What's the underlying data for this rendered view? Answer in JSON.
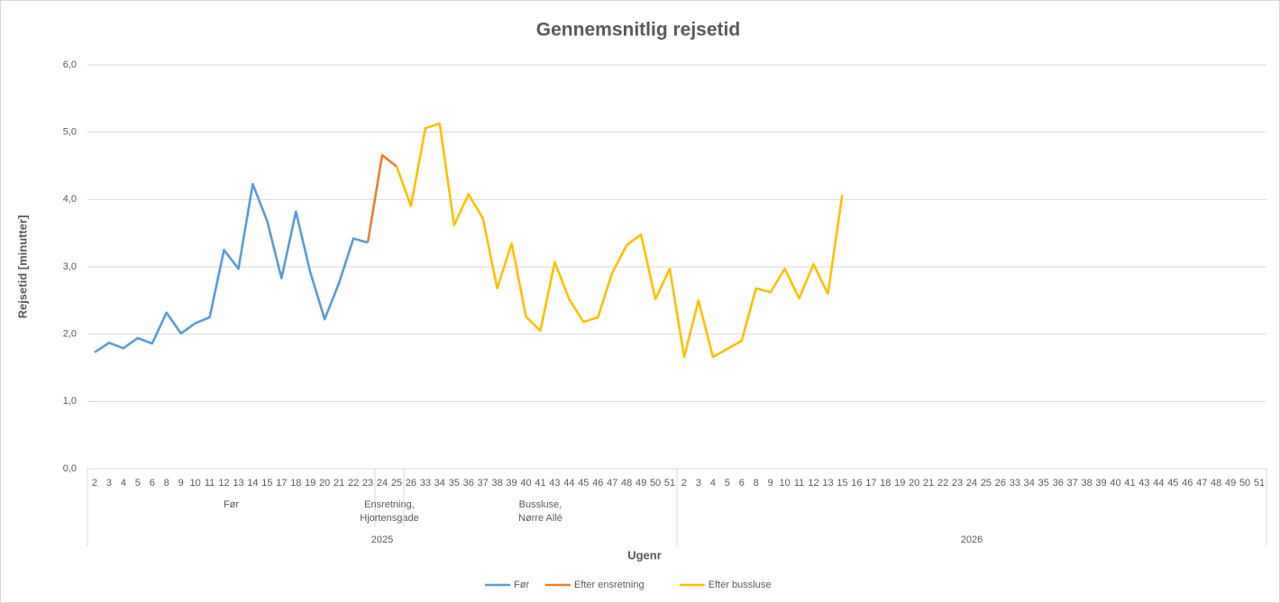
{
  "chart_data": {
    "type": "line",
    "title": "Gennemsnitlig rejsetid",
    "y_label": "Rejsetid [minutter]",
    "x_label": "Ugenr",
    "categories": [
      "2",
      "3",
      "4",
      "5",
      "6",
      "8",
      "9",
      "10",
      "11",
      "12",
      "13",
      "14",
      "15",
      "17",
      "18",
      "19",
      "20",
      "21",
      "22",
      "23",
      "24",
      "25",
      "26",
      "33",
      "34",
      "35",
      "36",
      "37",
      "38",
      "39",
      "40",
      "41",
      "43",
      "44",
      "45",
      "46",
      "47",
      "48",
      "49",
      "50",
      "51",
      "2",
      "3",
      "4",
      "5",
      "6",
      "8",
      "9",
      "10",
      "11",
      "12",
      "13",
      "15",
      "16",
      "17",
      "18",
      "19",
      "20",
      "21",
      "22",
      "23",
      "24",
      "25",
      "26",
      "33",
      "34",
      "35",
      "36",
      "37",
      "38",
      "39",
      "40",
      "41",
      "43",
      "44",
      "45",
      "46",
      "47",
      "48",
      "49",
      "50",
      "51"
    ],
    "groups": [
      {
        "label": [
          "Før"
        ],
        "count": 20
      },
      {
        "label": [
          "Ensretning,",
          "Hjortensgade"
        ],
        "count": 2
      },
      {
        "label": [
          "Bussluse,",
          "Nørre Allé"
        ],
        "count": 19
      },
      {
        "label": null,
        "count": 41
      }
    ],
    "years": [
      {
        "label": "2025",
        "count": 41
      },
      {
        "label": "2026",
        "count": 41
      }
    ],
    "ylim": [
      0,
      6
    ],
    "yticks": [
      {
        "value": 0,
        "label": "0,0"
      },
      {
        "value": 1,
        "label": "1,0"
      },
      {
        "value": 2,
        "label": "2,0"
      },
      {
        "value": 3,
        "label": "3,0"
      },
      {
        "value": 4,
        "label": "4,0"
      },
      {
        "value": 5,
        "label": "5,0"
      },
      {
        "value": 6,
        "label": "6,0"
      }
    ],
    "grid": true,
    "legend": "bottom",
    "series": [
      {
        "name": "Før",
        "color": "#5b9bd5",
        "values": [
          1.73,
          1.87,
          1.79,
          1.94,
          1.86,
          2.32,
          2.01,
          2.16,
          2.25,
          3.25,
          2.97,
          4.23,
          3.68,
          2.83,
          3.82,
          2.92,
          2.22,
          2.76,
          3.42,
          3.36,
          null,
          null,
          null,
          null,
          null,
          null,
          null,
          null,
          null,
          null,
          null,
          null,
          null,
          null,
          null,
          null,
          null,
          null,
          null,
          null,
          null,
          null,
          null,
          null,
          null,
          null,
          null,
          null,
          null,
          null,
          null,
          null,
          null,
          null,
          null,
          null,
          null,
          null,
          null,
          null,
          null,
          null,
          null,
          null,
          null,
          null,
          null,
          null,
          null,
          null,
          null,
          null,
          null,
          null,
          null,
          null,
          null,
          null,
          null,
          null,
          null,
          null
        ]
      },
      {
        "name": "Efter ensretning",
        "color": "#ed7d31",
        "values": [
          null,
          null,
          null,
          null,
          null,
          null,
          null,
          null,
          null,
          null,
          null,
          null,
          null,
          null,
          null,
          null,
          null,
          null,
          null,
          3.36,
          4.66,
          4.49,
          null,
          null,
          null,
          null,
          null,
          null,
          null,
          null,
          null,
          null,
          null,
          null,
          null,
          null,
          null,
          null,
          null,
          null,
          null,
          null,
          null,
          null,
          null,
          null,
          null,
          null,
          null,
          null,
          null,
          null,
          null,
          null,
          null,
          null,
          null,
          null,
          null,
          null,
          null,
          null,
          null,
          null,
          null,
          null,
          null,
          null,
          null,
          null,
          null,
          null,
          null,
          null,
          null,
          null,
          null,
          null,
          null,
          null,
          null,
          null
        ]
      },
      {
        "name": "Efter bussluse",
        "color": "#ffc000",
        "values": [
          null,
          null,
          null,
          null,
          null,
          null,
          null,
          null,
          null,
          null,
          null,
          null,
          null,
          null,
          null,
          null,
          null,
          null,
          null,
          null,
          null,
          4.49,
          3.9,
          5.06,
          5.13,
          3.62,
          4.08,
          3.72,
          2.68,
          3.35,
          2.26,
          2.05,
          3.07,
          2.52,
          2.18,
          2.25,
          2.91,
          3.32,
          3.48,
          2.52,
          2.97,
          1.66,
          2.5,
          1.66,
          1.78,
          1.9,
          2.68,
          2.62,
          2.97,
          2.53,
          3.04,
          2.6,
          4.07,
          null,
          null,
          null,
          null,
          null,
          null,
          null,
          null,
          null,
          null,
          null,
          null,
          null,
          null,
          null,
          null,
          null,
          null,
          null,
          null,
          null,
          null,
          null,
          null,
          null,
          null,
          null,
          null,
          null
        ]
      }
    ]
  }
}
